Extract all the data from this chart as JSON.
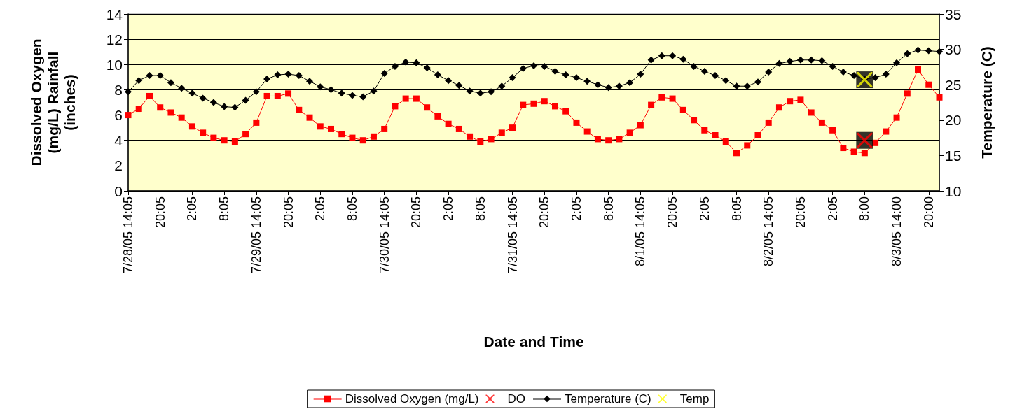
{
  "chart_data": {
    "type": "line",
    "xlabel": "Date and Time",
    "ylabel": "Dissolved Oxygen (mg/L) Rainfall (inches)",
    "y2label": "Temperature (C)",
    "categories": [
      "7/28/05 14:05",
      null,
      null,
      "20:05",
      null,
      null,
      "2:05",
      null,
      null,
      "8:05",
      null,
      null,
      "7/29/05 14:05",
      null,
      null,
      "20:05",
      null,
      null,
      "2:05",
      null,
      null,
      "8:05",
      null,
      null,
      "7/30/05 14:05",
      null,
      null,
      "20:05",
      null,
      null,
      "2:05",
      null,
      null,
      "8:05",
      null,
      null,
      "7/31/05 14:05",
      null,
      null,
      "20:05",
      null,
      null,
      "2:05",
      null,
      null,
      "8:05",
      null,
      null,
      "8/1/05 14:05",
      null,
      null,
      "20:05",
      null,
      null,
      "2:05",
      null,
      null,
      "8:05",
      null,
      null,
      "8/2/05 14:05",
      null,
      null,
      "20:05",
      null,
      null,
      "2:05",
      null,
      null,
      "8:00",
      null,
      null,
      "8/3/05 14:00",
      null,
      null,
      "20:00",
      null
    ],
    "series": [
      {
        "name": "Dissolved Oxygen (mg/L)",
        "marker": "square",
        "color": "#ff0000",
        "values": [
          6.0,
          6.5,
          7.5,
          6.6,
          6.2,
          5.8,
          5.1,
          4.6,
          4.2,
          4.0,
          3.9,
          4.5,
          5.4,
          7.5,
          7.5,
          7.7,
          6.4,
          5.8,
          5.1,
          4.9,
          4.5,
          4.2,
          4.0,
          4.3,
          4.9,
          6.7,
          7.3,
          7.3,
          6.6,
          5.9,
          5.3,
          4.9,
          4.3,
          3.9,
          4.1,
          4.6,
          5.0,
          6.8,
          6.9,
          7.1,
          6.7,
          6.3,
          5.4,
          4.7,
          4.1,
          4.0,
          4.1,
          4.6,
          5.2,
          6.8,
          7.4,
          7.3,
          6.4,
          5.6,
          4.8,
          4.4,
          3.9,
          3.0,
          3.6,
          4.4,
          5.4,
          6.6,
          7.1,
          7.2,
          6.2,
          5.4,
          4.8,
          3.4,
          3.1,
          3.0,
          3.8,
          4.7,
          5.8,
          7.7,
          9.6,
          8.4,
          7.4
        ]
      },
      {
        "name": "DO",
        "type": "scatter",
        "marker": "cross",
        "color": "#ff0000",
        "values": [
          null,
          null,
          null,
          null,
          null,
          null,
          null,
          null,
          null,
          null,
          null,
          null,
          null,
          null,
          null,
          null,
          null,
          null,
          null,
          null,
          null,
          null,
          null,
          null,
          null,
          null,
          null,
          null,
          null,
          null,
          null,
          null,
          null,
          null,
          null,
          null,
          null,
          null,
          null,
          null,
          null,
          null,
          null,
          null,
          null,
          null,
          null,
          null,
          null,
          null,
          null,
          null,
          null,
          null,
          null,
          null,
          null,
          null,
          null,
          null,
          null,
          null,
          null,
          null,
          null,
          null,
          null,
          null,
          null,
          4.0,
          null,
          null,
          null,
          null,
          null,
          null,
          null
        ]
      },
      {
        "name": "Temperature (C)",
        "marker": "diamond",
        "axis": "y2",
        "color": "#000000",
        "values": [
          24.0,
          25.6,
          26.3,
          26.3,
          25.3,
          24.5,
          23.8,
          23.1,
          22.5,
          21.9,
          21.8,
          22.8,
          24.0,
          25.8,
          26.4,
          26.5,
          26.3,
          25.5,
          24.7,
          24.3,
          23.8,
          23.5,
          23.3,
          24.1,
          26.6,
          27.6,
          28.2,
          28.1,
          27.4,
          26.4,
          25.6,
          24.9,
          24.1,
          23.8,
          24.0,
          24.8,
          26.0,
          27.3,
          27.7,
          27.6,
          26.9,
          26.4,
          26.0,
          25.5,
          25.0,
          24.6,
          24.8,
          25.3,
          26.5,
          28.5,
          29.1,
          29.1,
          28.6,
          27.6,
          26.9,
          26.3,
          25.6,
          24.8,
          24.8,
          25.4,
          26.8,
          28.0,
          28.3,
          28.5,
          28.5,
          28.4,
          27.6,
          26.8,
          26.3,
          25.8,
          26.0,
          26.5,
          28.1,
          29.4,
          29.9,
          29.8,
          29.7
        ]
      },
      {
        "name": "Temp",
        "type": "scatter",
        "marker": "cross",
        "axis": "y2",
        "color": "#ffff00",
        "values": [
          null,
          null,
          null,
          null,
          null,
          null,
          null,
          null,
          null,
          null,
          null,
          null,
          null,
          null,
          null,
          null,
          null,
          null,
          null,
          null,
          null,
          null,
          null,
          null,
          null,
          null,
          null,
          null,
          null,
          null,
          null,
          null,
          null,
          null,
          null,
          null,
          null,
          null,
          null,
          null,
          null,
          null,
          null,
          null,
          null,
          null,
          null,
          null,
          null,
          null,
          null,
          null,
          null,
          null,
          null,
          null,
          null,
          null,
          null,
          null,
          null,
          null,
          null,
          null,
          null,
          null,
          null,
          null,
          null,
          25.7,
          null,
          null,
          null,
          null,
          null,
          null,
          null
        ]
      }
    ],
    "ylim": [
      0,
      14
    ],
    "yticks": [
      0,
      2,
      4,
      6,
      8,
      10,
      12,
      14
    ],
    "y2lim": [
      10,
      35
    ],
    "y2ticks": [
      10,
      15,
      20,
      25,
      30,
      35
    ],
    "grid": "y",
    "legend": "bottom"
  }
}
